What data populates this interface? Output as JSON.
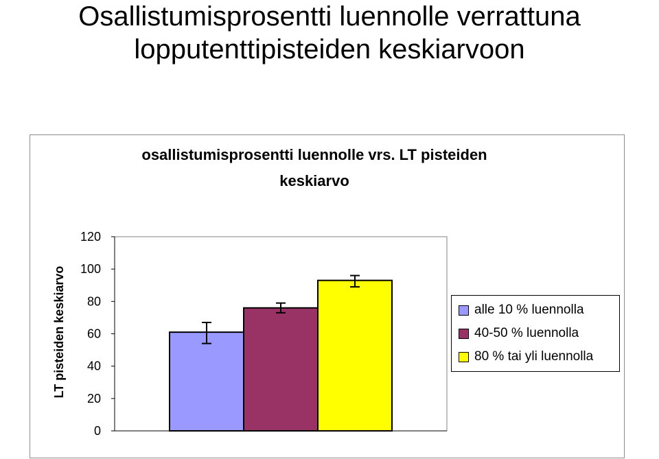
{
  "slide": {
    "title_line1": "Osallistumisprosentti luennolle verrattuna",
    "title_line2": "lopputenttipisteiden keskiarvoon"
  },
  "chart_data": {
    "type": "bar",
    "title_line1": "osallistumisprosentti luennolle vrs. LT pisteiden",
    "title_line2": "keskiarvo",
    "ylabel": "LT pisteiden keskiarvo",
    "xlabel": "",
    "ylim": [
      0,
      120
    ],
    "yticks": [
      "0",
      "20",
      "40",
      "60",
      "80",
      "100",
      "120"
    ],
    "grid": false,
    "legend_position": "right",
    "series": [
      {
        "name": "alle 10 % luennolla",
        "value": 61,
        "error_low": 54,
        "error_high": 67,
        "color": "#9999ff"
      },
      {
        "name": "40-50 % luennolla",
        "value": 76,
        "error_low": 73,
        "error_high": 79,
        "color": "#993366"
      },
      {
        "name": "80 % tai yli luennolla",
        "value": 93,
        "error_low": 89,
        "error_high": 96,
        "color": "#ffff00"
      }
    ]
  }
}
